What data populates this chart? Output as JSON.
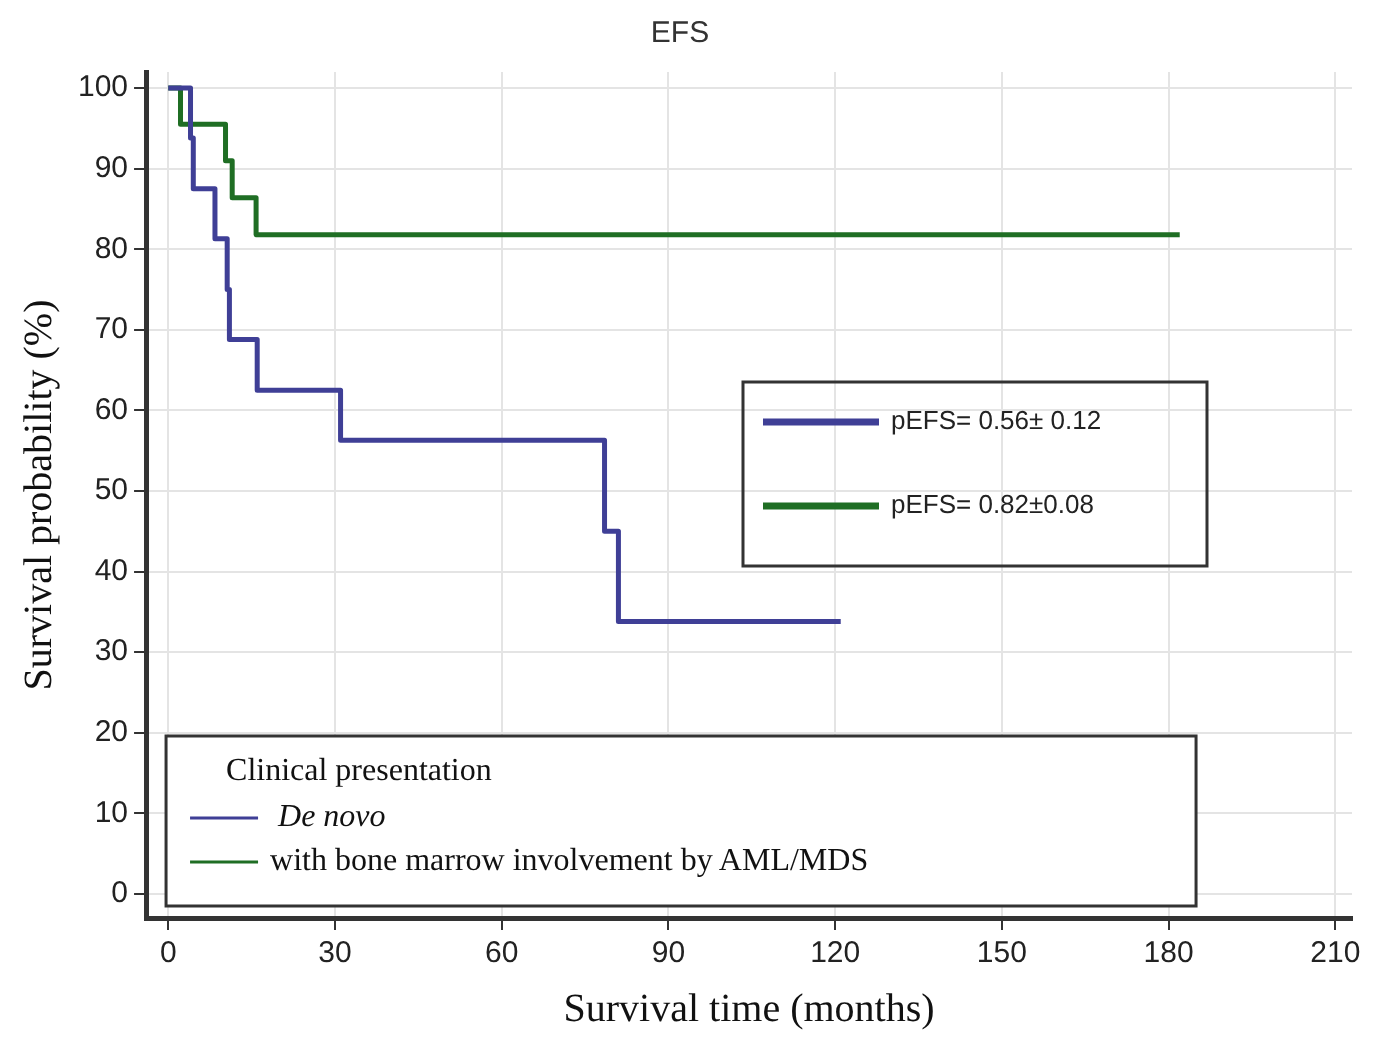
{
  "chart_data": {
    "type": "step",
    "title": "EFS",
    "xlabel": "Survival time (months)",
    "ylabel": "Survival probability (%)",
    "legend_title": "Clinical presentation",
    "legend": "bottom left",
    "grid": true,
    "xlim": [
      -4,
      213
    ],
    "xticks": [
      0,
      30,
      60,
      90,
      120,
      150,
      180,
      210
    ],
    "ylim": [
      -3,
      102
    ],
    "yticks": [
      0,
      10,
      20,
      30,
      40,
      50,
      60,
      70,
      80,
      90,
      100
    ],
    "series": [
      {
        "name": "De novo",
        "color": "#3f3f96",
        "x": [
          0,
          4,
          4.5,
          8.4,
          10.6,
          11,
          16,
          31,
          78.5,
          81,
          121
        ],
        "values": [
          100,
          93.8,
          87.5,
          81.3,
          75,
          68.8,
          62.5,
          56.3,
          45,
          33.8,
          33.8
        ]
      },
      {
        "name": "with bone marrow involvement by AML/MDS",
        "color": "#1f6e24",
        "x": [
          0,
          2.2,
          10.3,
          11.5,
          15.8,
          182
        ],
        "values": [
          100,
          95.5,
          91,
          86.4,
          81.8,
          81.8
        ]
      }
    ],
    "annotations": [
      "pEFS= 0.56± 0.12",
      "pEFS= 0.82±0.08"
    ]
  }
}
